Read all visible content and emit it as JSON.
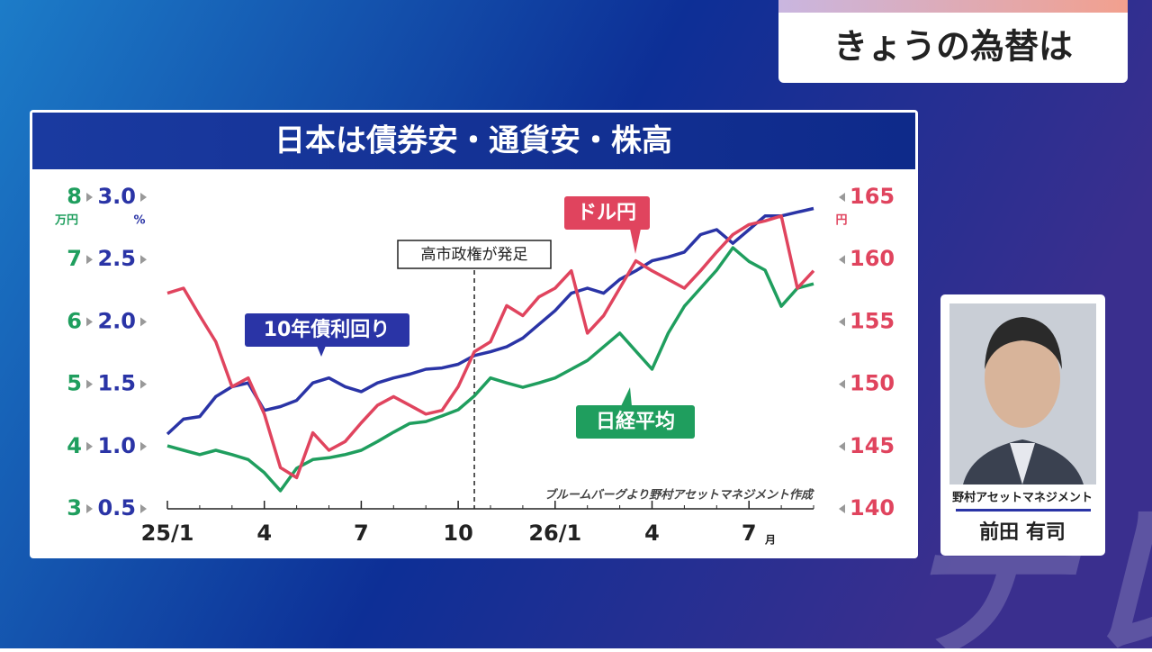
{
  "header": {
    "title": "きょうの為替は"
  },
  "chart_data": {
    "type": "line",
    "title": "日本は債券安・通貨安・株高",
    "x": [
      0,
      0.5,
      1,
      1.5,
      2,
      2.5,
      3,
      3.5,
      4,
      4.5,
      5,
      5.5,
      6,
      6.5,
      7,
      7.5,
      8,
      8.5,
      9,
      9.5,
      10,
      10.5,
      11,
      11.5,
      12,
      12.5,
      13,
      13.5,
      14,
      14.5,
      15,
      15.5,
      16,
      16.5,
      17,
      17.5,
      18,
      18.5,
      19,
      19.5,
      20
    ],
    "xlim": [
      0,
      20
    ],
    "xticks": [
      {
        "value": 0,
        "label": "25/1"
      },
      {
        "value": 3,
        "label": "4"
      },
      {
        "value": 6,
        "label": "7"
      },
      {
        "value": 9,
        "label": "10"
      },
      {
        "value": 12,
        "label": "26/1"
      },
      {
        "value": 15,
        "label": "4"
      },
      {
        "value": 18,
        "label": "7"
      }
    ],
    "x_unit": "月",
    "ylim": [
      3,
      8
    ],
    "yticks": [
      3,
      4,
      5,
      6,
      7,
      8
    ],
    "y_unit": "万円",
    "y2lim": [
      0.5,
      3.0
    ],
    "y2ticks": [
      0.5,
      {
        "value": 1,
        "label": "1.0"
      },
      1.5,
      {
        "value": 2,
        "label": "2.0"
      },
      2.5,
      {
        "value": 3,
        "label": "3.0"
      }
    ],
    "y2_unit": "%",
    "y3lim": [
      140,
      165
    ],
    "y3ticks": [
      140,
      145,
      150,
      155,
      160,
      165
    ],
    "y3_unit": "円",
    "series": [
      {
        "name": "日経平均",
        "color": "#1f9e5e",
        "axis": "y",
        "values": [
          4.01,
          3.94,
          3.87,
          3.94,
          3.87,
          3.79,
          3.58,
          3.29,
          3.65,
          3.79,
          3.82,
          3.87,
          3.94,
          4.08,
          4.23,
          4.37,
          4.4,
          4.49,
          4.59,
          4.81,
          5.1,
          5.02,
          4.95,
          5.02,
          5.1,
          5.24,
          5.38,
          5.6,
          5.82,
          5.53,
          5.24,
          5.82,
          6.25,
          6.54,
          6.83,
          7.19,
          6.97,
          6.83,
          6.25,
          6.54,
          6.61
        ]
      },
      {
        "name": "10年債利回り",
        "color": "#2a34a6",
        "axis": "y2",
        "values": [
          1.1,
          1.22,
          1.24,
          1.4,
          1.48,
          1.51,
          1.29,
          1.32,
          1.37,
          1.51,
          1.55,
          1.48,
          1.44,
          1.51,
          1.55,
          1.58,
          1.62,
          1.63,
          1.66,
          1.73,
          1.76,
          1.8,
          1.87,
          1.98,
          2.09,
          2.23,
          2.27,
          2.23,
          2.34,
          2.41,
          2.49,
          2.52,
          2.56,
          2.7,
          2.74,
          2.63,
          2.74,
          2.85,
          2.85,
          2.88,
          2.91
        ]
      },
      {
        "name": "ドル円",
        "color": "#e0445e",
        "axis": "y3",
        "values": [
          157.3,
          157.7,
          155.5,
          153.4,
          149.8,
          150.5,
          147.6,
          143.3,
          142.5,
          146.1,
          144.7,
          145.4,
          146.9,
          148.3,
          149.0,
          148.3,
          147.6,
          147.9,
          149.8,
          152.6,
          153.4,
          156.3,
          155.5,
          157.0,
          157.7,
          159.1,
          154.1,
          155.5,
          157.7,
          159.9,
          159.1,
          158.4,
          157.7,
          159.1,
          160.6,
          162.0,
          162.8,
          163.1,
          163.5,
          157.7,
          159.1
        ]
      }
    ],
    "annotations": [
      {
        "text": "高市政権が発足",
        "x": 9.5
      }
    ],
    "source": "ブルームバーグより野村アセットマネジメント作成"
  },
  "caption": {
    "company": "野村アセットマネジメント",
    "name": "前田 有司"
  },
  "watermark": "テレ東"
}
